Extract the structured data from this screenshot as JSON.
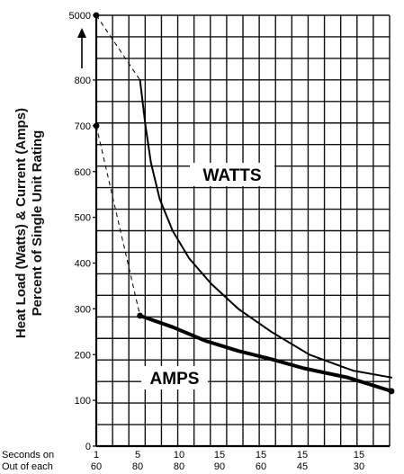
{
  "chart_data": {
    "type": "line",
    "ylabel_line1": "Heat Load (Watts) & Current (Amps)",
    "ylabel_line2": "Percent of Single Unit Rating",
    "x_row_labels": [
      "Seconds on",
      "Out of each"
    ],
    "categories": [
      {
        "seconds_on": "1",
        "out_of_each": "60"
      },
      {
        "seconds_on": "5",
        "out_of_each": "80"
      },
      {
        "seconds_on": "10",
        "out_of_each": "80"
      },
      {
        "seconds_on": "15",
        "out_of_each": "90"
      },
      {
        "seconds_on": "15",
        "out_of_each": "60"
      },
      {
        "seconds_on": "15",
        "out_of_each": "45"
      },
      {
        "seconds_on": "15",
        "out_of_each": "30"
      }
    ],
    "y_ticks": [
      "0",
      "100",
      "200",
      "300",
      "400",
      "500",
      "600",
      "700",
      "800",
      "5000"
    ],
    "y_axis_break": "800 to 5000",
    "grid": true,
    "series": [
      {
        "name": "WATTS",
        "label_position": "middle",
        "solid": [
          [
            5,
            800
          ],
          [
            5.5,
            700
          ],
          [
            6,
            620
          ],
          [
            6.8,
            540
          ],
          [
            8,
            470
          ],
          [
            9.5,
            410
          ],
          [
            11.5,
            355
          ],
          [
            14,
            300
          ],
          [
            17,
            250
          ],
          [
            20.5,
            200
          ],
          [
            24.5,
            165
          ],
          [
            28,
            150
          ]
        ],
        "dashed": [
          [
            1,
            5000
          ],
          [
            5,
            800
          ]
        ]
      },
      {
        "name": "AMPS",
        "label_position": "lower",
        "solid": [
          [
            5,
            285
          ],
          [
            8,
            260
          ],
          [
            11,
            230
          ],
          [
            14,
            208
          ],
          [
            17,
            190
          ],
          [
            20,
            170
          ],
          [
            24,
            150
          ],
          [
            28,
            120
          ]
        ],
        "dashed": [
          [
            1,
            700
          ],
          [
            5,
            285
          ]
        ]
      }
    ],
    "point_markers": [
      [
        1,
        5000
      ],
      [
        1,
        700
      ],
      [
        5,
        285
      ],
      [
        28,
        120
      ]
    ]
  }
}
